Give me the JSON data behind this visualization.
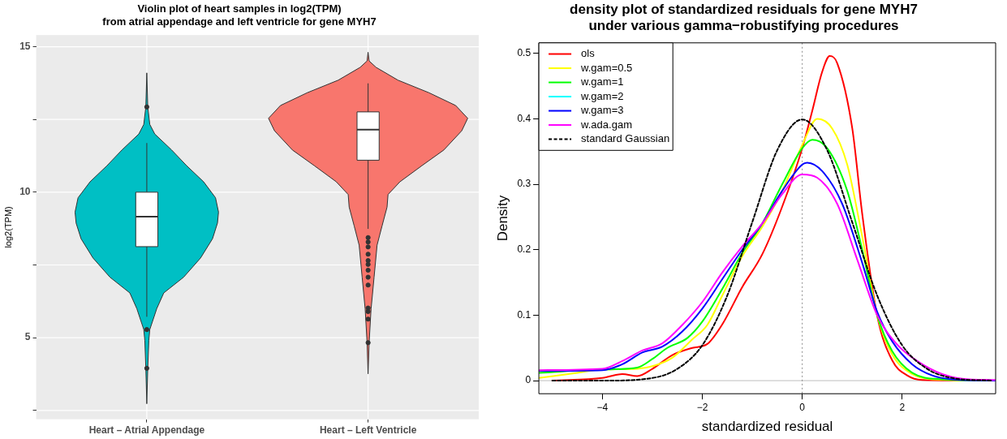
{
  "chart_data": [
    {
      "type": "box",
      "title": "Violin plot of heart samples in log2(TPM)\nfrom atrial appendage and left ventricle for gene MYH7",
      "ylabel": "log2(TPM)",
      "categories": [
        "Heart – Atrial Appendage",
        "Heart – Left Ventricle"
      ],
      "ylim": [
        2.2,
        15.4
      ],
      "yticks": [
        {
          "value": 2.5,
          "label": null
        },
        5,
        {
          "value": 7.5,
          "label": null
        },
        10,
        {
          "value": 12.5,
          "label": null
        },
        15
      ],
      "grid": true,
      "boxes": [
        {
          "low": 5.72,
          "q1": 8.13,
          "median": 9.16,
          "q3": 10,
          "high": 11.69
        },
        {
          "low": 8.74,
          "q1": 11.1,
          "median": 12.15,
          "q3": 12.76,
          "high": 13.74
        }
      ],
      "series": [
        {
          "type": "scatter",
          "color": "#333333",
          "x": [
            "Heart – Atrial Appendage",
            "Heart – Atrial Appendage",
            "Heart – Atrial Appendage",
            "Heart – Left Ventricle",
            "Heart – Left Ventricle",
            "Heart – Left Ventricle",
            "Heart – Left Ventricle",
            "Heart – Left Ventricle",
            "Heart – Left Ventricle",
            "Heart – Left Ventricle",
            "Heart – Left Ventricle",
            "Heart – Left Ventricle",
            "Heart – Left Ventricle",
            "Heart – Left Ventricle",
            "Heart – Left Ventricle",
            "Heart – Left Ventricle"
          ],
          "values": [
            12.93,
            5.28,
            3.95,
            8.44,
            8.29,
            8.12,
            7.87,
            7.65,
            7.52,
            7.32,
            7.08,
            6.81,
            6.02,
            5.9,
            5.64,
            4.83
          ]
        }
      ]
    },
    {
      "type": "line",
      "title": "density plot of standardized residuals for gene MYH7\nunder various gamma−robustifying procedures",
      "xlabel": "standardized residual",
      "ylabel": "Density",
      "xlim": [
        -5.27,
        3.87
      ],
      "ylim": [
        -0.02,
        0.516
      ],
      "xticks": [
        -4,
        -2,
        0,
        2
      ],
      "yticks": [
        0,
        0.1,
        0.2,
        0.3,
        0.4,
        0.5
      ],
      "grid": false,
      "legend": "top left",
      "ref_lines": [
        {
          "axis": "y",
          "value": 0,
          "color": "#bebebe",
          "line_style": "solid"
        },
        {
          "axis": "x",
          "value": 0,
          "color": "#8c8c8c",
          "line_style": "dotted"
        }
      ],
      "series": [
        {
          "name": "ols",
          "color": "#ff0000",
          "line_style": "solid",
          "x": [
            -5.0,
            -4.0,
            -3.6,
            -3.3,
            -3.0,
            -2.6,
            -2.2,
            -1.9,
            -1.6,
            -1.2,
            -0.8,
            -0.4,
            0,
            0.2,
            0.4,
            0.55,
            0.7,
            1.0,
            1.2,
            1.5,
            1.8,
            2.1,
            2.4,
            3.8
          ],
          "values": [
            0,
            0.004,
            0.01,
            0.007,
            0.018,
            0.039,
            0.05,
            0.056,
            0.086,
            0.143,
            0.193,
            0.266,
            0.355,
            0.412,
            0.472,
            0.496,
            0.485,
            0.386,
            0.255,
            0.099,
            0.031,
            0.008,
            0.001,
            0
          ]
        },
        {
          "name": "w.gam=0.5",
          "color": "#ffff00",
          "line_style": "solid",
          "x": [
            -5.27,
            -4.5,
            -4.0,
            -3.3,
            -3.0,
            -2.6,
            -2.2,
            -1.9,
            -1.6,
            -1.2,
            -0.8,
            -0.4,
            0,
            0.3,
            0.6,
            0.9,
            1.2,
            1.5,
            1.8,
            2.2,
            2.6,
            3.87
          ],
          "values": [
            0.004,
            0.012,
            0.017,
            0.018,
            0.022,
            0.035,
            0.063,
            0.085,
            0.13,
            0.19,
            0.235,
            0.29,
            0.36,
            0.4,
            0.385,
            0.33,
            0.22,
            0.1,
            0.04,
            0.01,
            0.002,
            0
          ]
        },
        {
          "name": "w.gam=1",
          "color": "#00ff00",
          "line_style": "solid",
          "x": [
            -5.27,
            -4.0,
            -3.3,
            -3.0,
            -2.7,
            -2.3,
            -2.0,
            -1.6,
            -1.2,
            -0.8,
            -0.4,
            0,
            0.2,
            0.5,
            0.9,
            1.2,
            1.5,
            1.8,
            2.2,
            2.8,
            3.87
          ],
          "values": [
            0.012,
            0.017,
            0.02,
            0.033,
            0.05,
            0.065,
            0.09,
            0.14,
            0.195,
            0.24,
            0.3,
            0.355,
            0.368,
            0.355,
            0.29,
            0.2,
            0.1,
            0.045,
            0.012,
            0.002,
            0
          ]
        },
        {
          "name": "w.gam=2",
          "color": "#00ffff",
          "line_style": "solid",
          "values": [
            null
          ]
        },
        {
          "name": "w.gam=3",
          "color": "#0000ff",
          "line_style": "solid",
          "x": [
            -5.27,
            -4.0,
            -3.6,
            -3.2,
            -2.8,
            -2.4,
            -2.0,
            -1.6,
            -1.2,
            -0.8,
            -0.4,
            0,
            0.1,
            0.4,
            0.8,
            1.2,
            1.5,
            1.8,
            2.2,
            2.6,
            3.0,
            3.87
          ],
          "values": [
            0.015,
            0.016,
            0.025,
            0.043,
            0.052,
            0.075,
            0.11,
            0.155,
            0.2,
            0.24,
            0.29,
            0.33,
            0.333,
            0.32,
            0.27,
            0.18,
            0.105,
            0.06,
            0.025,
            0.008,
            0.002,
            0
          ]
        },
        {
          "name": "w.ada.gam",
          "color": "#ff00ff",
          "line_style": "solid",
          "x": [
            -5.27,
            -4.0,
            -3.6,
            -3.2,
            -2.8,
            -2.4,
            -2.0,
            -1.6,
            -1.2,
            -0.8,
            -0.4,
            0,
            0.3,
            0.7,
            1.1,
            1.5,
            1.9,
            2.3,
            2.8,
            3.2,
            3.87
          ],
          "values": [
            0.016,
            0.018,
            0.03,
            0.046,
            0.057,
            0.085,
            0.12,
            0.165,
            0.205,
            0.24,
            0.285,
            0.315,
            0.31,
            0.27,
            0.185,
            0.1,
            0.055,
            0.03,
            0.01,
            0.003,
            0.001
          ]
        },
        {
          "name": "standard Gaussian",
          "color": "#000000",
          "line_style": "dashed",
          "x": [
            -5.0,
            -4.0,
            -3.0,
            -2.5,
            -2.0,
            -1.5,
            -1.0,
            -0.5,
            0,
            0.5,
            1.0,
            1.5,
            2.0,
            2.5,
            3.0,
            3.8
          ],
          "values": [
            0,
            0,
            0.004,
            0.018,
            0.054,
            0.13,
            0.242,
            0.352,
            0.399,
            0.352,
            0.242,
            0.13,
            0.054,
            0.018,
            0.004,
            0
          ]
        }
      ]
    }
  ]
}
